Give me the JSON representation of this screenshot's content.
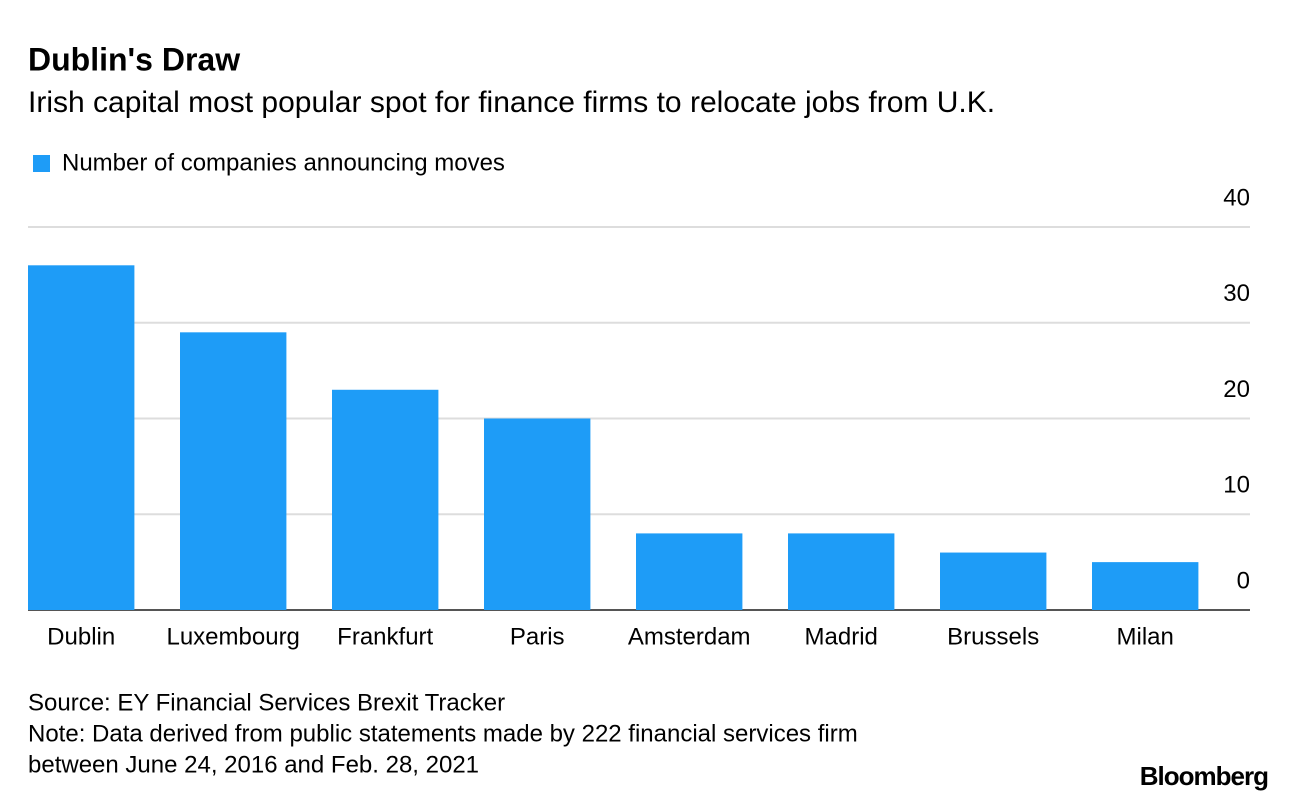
{
  "chart_data": {
    "type": "bar",
    "title": "Dublin's Draw",
    "subtitle": "Irish capital most popular spot for finance firms to relocate jobs from U.K.",
    "categories": [
      "Dublin",
      "Luxembourg",
      "Frankfurt",
      "Paris",
      "Amsterdam",
      "Madrid",
      "Brussels",
      "Milan"
    ],
    "series": [
      {
        "name": "Number of companies announcing moves",
        "color": "#1e9cf7",
        "values": [
          36,
          29,
          23,
          20,
          8,
          8,
          6,
          5
        ]
      }
    ],
    "ylim": [
      0,
      40
    ],
    "yticks": [
      0,
      10,
      20,
      30,
      40
    ],
    "grid": true,
    "y_axis_side": "right"
  },
  "footer": {
    "source": "Source: EY Financial Services Brexit Tracker",
    "note": [
      "Note: Data derived from public statements made by 222 financial services firm",
      "between June 24, 2016 and Feb. 28, 2021"
    ],
    "logo": "Bloomberg"
  }
}
